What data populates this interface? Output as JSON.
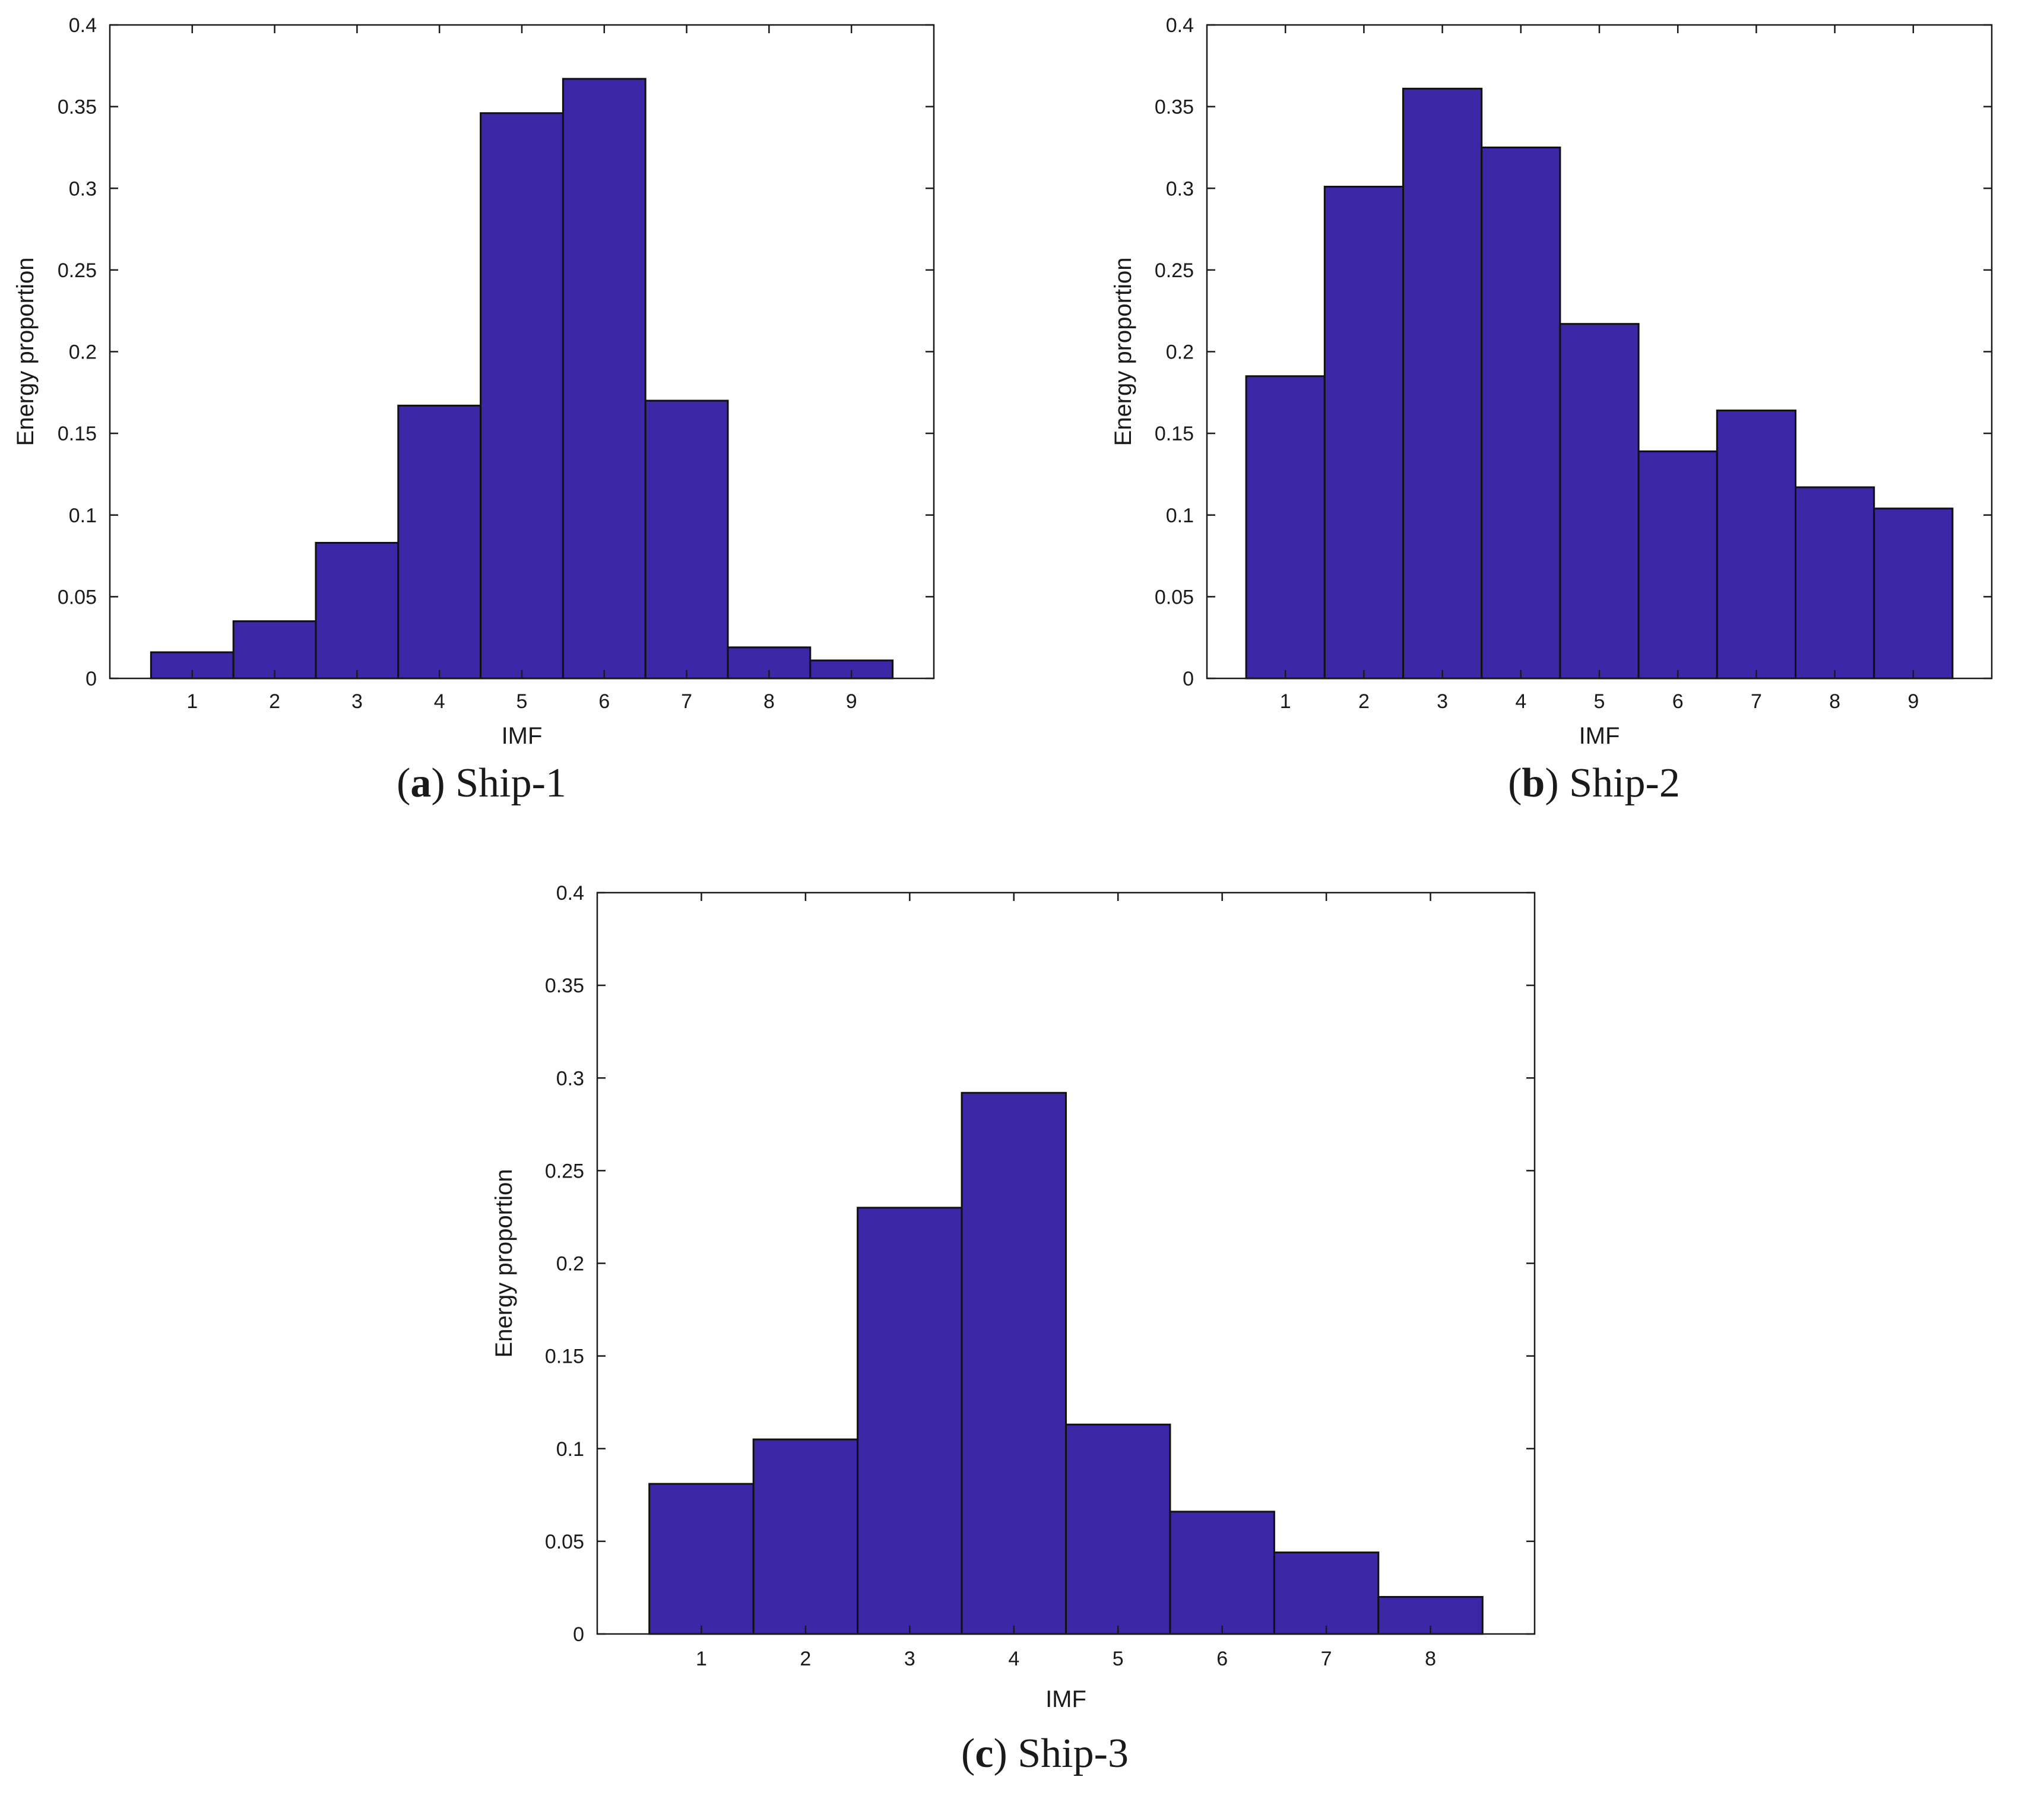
{
  "figure": {
    "colors": {
      "bar_fill": "#3c27a6",
      "bar_edge": "#111111",
      "axis": "#1a1a1a",
      "background": "#ffffff"
    }
  },
  "chart_data": [
    {
      "id": "ship1",
      "type": "bar",
      "caption_letter": "a",
      "caption_text": "Ship-1",
      "xlabel": "IMF",
      "ylabel": "Energy proportion",
      "categories": [
        "1",
        "2",
        "3",
        "4",
        "5",
        "6",
        "7",
        "8",
        "9"
      ],
      "values": [
        0.016,
        0.035,
        0.083,
        0.167,
        0.346,
        0.367,
        0.17,
        0.019,
        0.011
      ],
      "ylim": [
        0,
        0.4
      ],
      "yticks": [
        "0",
        "0.05",
        "0.1",
        "0.15",
        "0.2",
        "0.25",
        "0.3",
        "0.35",
        "0.4"
      ],
      "xlim": [
        0,
        10
      ],
      "grid": false
    },
    {
      "id": "ship2",
      "type": "bar",
      "caption_letter": "b",
      "caption_text": "Ship-2",
      "xlabel": "IMF",
      "ylabel": "Energy proportion",
      "categories": [
        "1",
        "2",
        "3",
        "4",
        "5",
        "6",
        "7",
        "8",
        "9"
      ],
      "values": [
        0.185,
        0.301,
        0.361,
        0.325,
        0.217,
        0.139,
        0.164,
        0.117,
        0.104
      ],
      "ylim": [
        0,
        0.4
      ],
      "yticks": [
        "0",
        "0.05",
        "0.1",
        "0.15",
        "0.2",
        "0.25",
        "0.3",
        "0.35",
        "0.4"
      ],
      "xlim": [
        0,
        10
      ],
      "grid": false
    },
    {
      "id": "ship3",
      "type": "bar",
      "caption_letter": "c",
      "caption_text": "Ship-3",
      "xlabel": "IMF",
      "ylabel": "Energy proportion",
      "categories": [
        "1",
        "2",
        "3",
        "4",
        "5",
        "6",
        "7",
        "8"
      ],
      "values": [
        0.081,
        0.105,
        0.23,
        0.292,
        0.113,
        0.066,
        0.044,
        0.02
      ],
      "ylim": [
        0,
        0.4
      ],
      "yticks": [
        "0",
        "0.05",
        "0.1",
        "0.15",
        "0.2",
        "0.25",
        "0.3",
        "0.35",
        "0.4"
      ],
      "xlim": [
        0,
        9
      ],
      "grid": false
    }
  ]
}
